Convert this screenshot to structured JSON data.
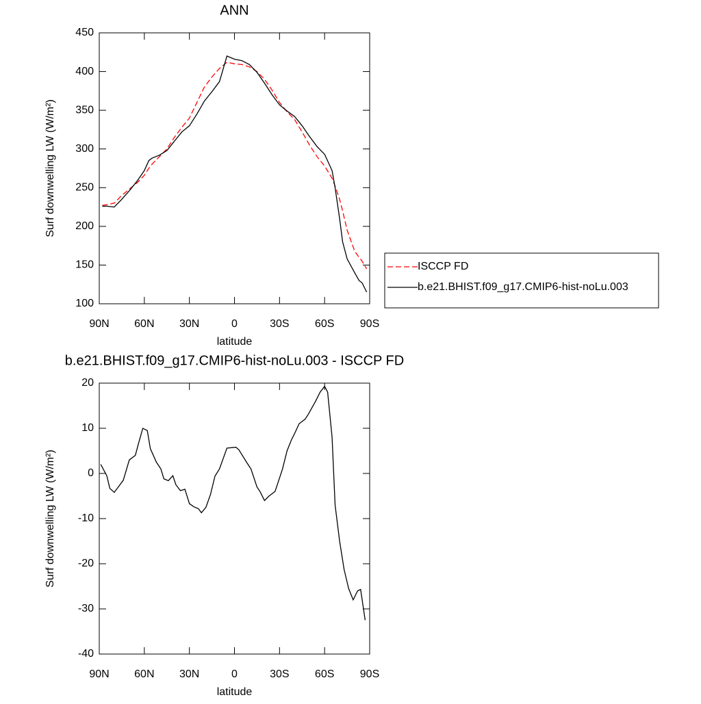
{
  "chart_data": [
    {
      "type": "line",
      "title": "ANN",
      "xlabel": "latitude",
      "ylabel": "Surf downwelling LW (W/m²)",
      "x": [
        88,
        85,
        80,
        75,
        70,
        65,
        60,
        57,
        55,
        50,
        45,
        40,
        35,
        30,
        25,
        20,
        15,
        10,
        5,
        0,
        -5,
        -10,
        -15,
        -20,
        -25,
        -30,
        -35,
        -40,
        -45,
        -50,
        -55,
        -60,
        -65,
        -67,
        -70,
        -72,
        -75,
        -80,
        -83,
        -85,
        -88
      ],
      "series": [
        {
          "name": "ISCCP FD",
          "color": "#ff0000",
          "dashed": true,
          "values": [
            227,
            228,
            230,
            240,
            248,
            256,
            266,
            275,
            280,
            290,
            300,
            315,
            328,
            340,
            360,
            380,
            393,
            404,
            412,
            410,
            409,
            406,
            400,
            390,
            376,
            360,
            348,
            338,
            322,
            305,
            290,
            278,
            262,
            252,
            235,
            220,
            195,
            168,
            160,
            155,
            145
          ]
        },
        {
          "name": "b.e21.BHIST.f09_g17.CMIP6-hist-noLu.003",
          "color": "#000000",
          "dashed": false,
          "values": [
            226,
            226,
            225,
            235,
            246,
            258,
            272,
            285,
            288,
            292,
            298,
            310,
            322,
            330,
            345,
            362,
            374,
            387,
            420,
            416,
            414,
            409,
            399,
            385,
            370,
            357,
            349,
            342,
            330,
            316,
            303,
            293,
            272,
            250,
            210,
            180,
            158,
            140,
            130,
            127,
            115
          ]
        }
      ],
      "xlim": [
        90,
        -90
      ],
      "xticks": [
        {
          "value": 90,
          "label": "90N"
        },
        {
          "value": 60,
          "label": "60N"
        },
        {
          "value": 30,
          "label": "30N"
        },
        0,
        {
          "value": -30,
          "label": "30S"
        },
        {
          "value": -60,
          "label": "60S"
        },
        {
          "value": -90,
          "label": "90S"
        }
      ],
      "ylim": [
        100,
        450
      ],
      "yticks": [
        100,
        150,
        200,
        250,
        300,
        350,
        400,
        450
      ],
      "legend": "right"
    },
    {
      "type": "line",
      "title": "b.e21.BHIST.f09_g17.CMIP6-hist-noLu.003 - ISCCP FD",
      "xlabel": "latitude",
      "ylabel": "Surf downwelling LW (W/m²)",
      "x": [
        89,
        85,
        83,
        80,
        74,
        70,
        66,
        64,
        61,
        58,
        56,
        52,
        49,
        47,
        44,
        41,
        39,
        36,
        33,
        30,
        27,
        24,
        22,
        19,
        16,
        13,
        10,
        5,
        -1,
        -3,
        -8,
        -11,
        -15,
        -17,
        -20,
        -23,
        -27,
        -32,
        -35,
        -38,
        -40,
        -43,
        -47,
        -49,
        -52,
        -54,
        -57,
        -60,
        -62,
        -65,
        -67,
        -70,
        -73,
        -76,
        -79,
        -82,
        -84,
        -87
      ],
      "values": [
        2,
        -0.5,
        -3.3,
        -4.2,
        -1.5,
        3,
        4,
        6.5,
        10,
        9.5,
        5.5,
        2.5,
        1,
        -1.2,
        -1.6,
        -0.5,
        -2.5,
        -3.8,
        -3.5,
        -6.7,
        -7.4,
        -7.8,
        -8.7,
        -7.5,
        -4.7,
        -0.6,
        1,
        5.6,
        5.8,
        5.2,
        2.5,
        1,
        -3,
        -4,
        -6,
        -5,
        -4,
        1,
        5,
        7.5,
        8.8,
        11,
        12,
        13,
        14.8,
        16,
        18,
        19.3,
        18,
        8,
        -7,
        -15,
        -21.3,
        -25.5,
        -28,
        -26,
        -25.7,
        -32.5
      ],
      "color": "#000000",
      "xlim": [
        90,
        -90
      ],
      "xticks": [
        {
          "value": 90,
          "label": "90N"
        },
        {
          "value": 60,
          "label": "60N"
        },
        {
          "value": 30,
          "label": "30N"
        },
        0,
        {
          "value": -30,
          "label": "30S"
        },
        {
          "value": -60,
          "label": "60S"
        },
        {
          "value": -90,
          "label": "90S"
        }
      ],
      "ylim": [
        -40,
        20
      ],
      "yticks": [
        -40,
        -30,
        -20,
        -10,
        0,
        10,
        20
      ]
    }
  ]
}
